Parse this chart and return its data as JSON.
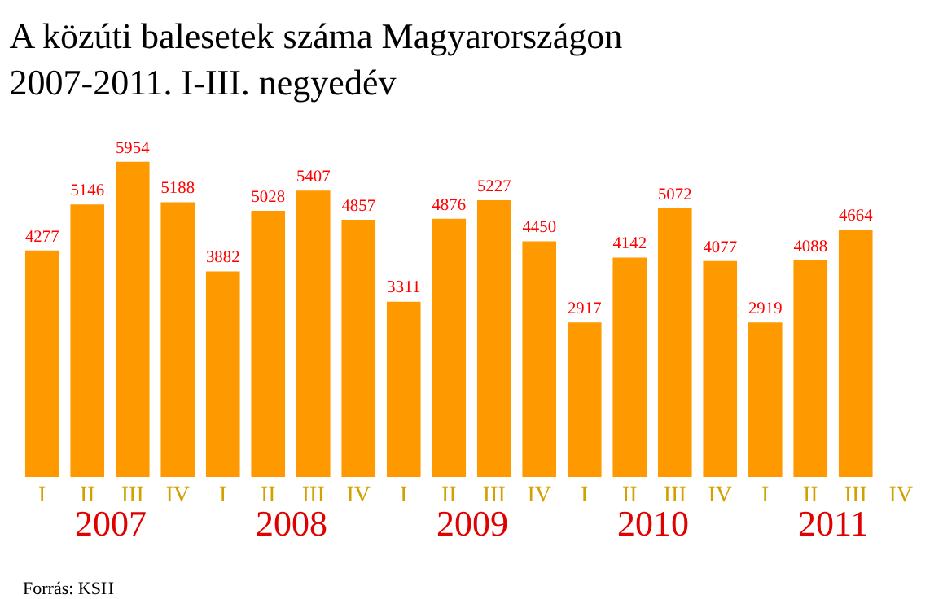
{
  "chart_data": {
    "type": "bar",
    "title": "A közúti balesetek száma Magyarországon\n2007-2011. I-III. negyedév",
    "categories": [
      "I",
      "II",
      "III",
      "IV",
      "I",
      "II",
      "III",
      "IV",
      "I",
      "II",
      "III",
      "IV",
      "I",
      "II",
      "III",
      "IV",
      "I",
      "II",
      "III",
      "IV"
    ],
    "values": [
      4277,
      5146,
      5954,
      5188,
      3882,
      5028,
      5407,
      4857,
      3311,
      4876,
      5227,
      4450,
      2917,
      4142,
      5072,
      4077,
      2919,
      4088,
      4664,
      null
    ],
    "color": "#ff9900",
    "data_labels": true,
    "annotations": [
      "2007",
      "2008",
      "2009",
      "2010",
      "2011",
      "Forrás: KSH"
    ]
  }
}
